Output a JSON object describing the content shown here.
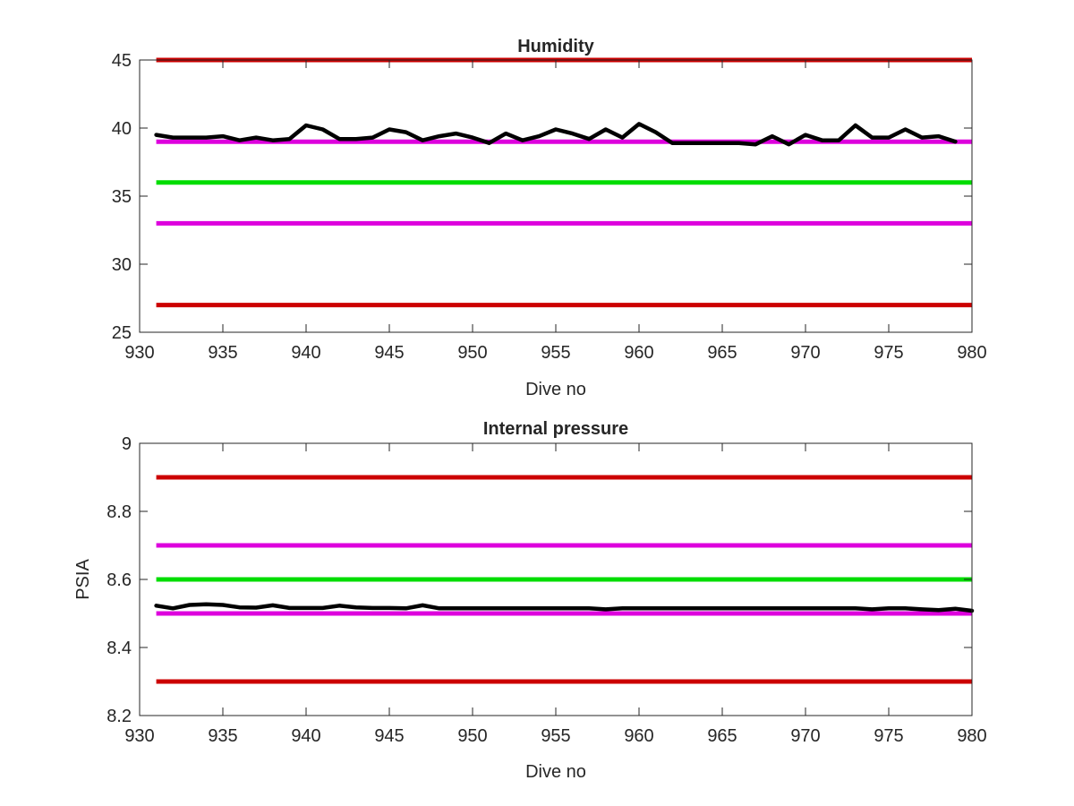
{
  "chart_data": [
    {
      "type": "line",
      "title": "Humidity",
      "xlabel": "Dive no",
      "ylabel": "",
      "xlim": [
        930,
        980
      ],
      "ylim": [
        25,
        45
      ],
      "xticks": [
        "930",
        "935",
        "940",
        "945",
        "950",
        "955",
        "960",
        "965",
        "970",
        "975",
        "980"
      ],
      "yticks": [
        "25",
        "30",
        "35",
        "40",
        "45"
      ],
      "grid": false,
      "reference_lines": [
        {
          "y": 45,
          "color": "#cc0000"
        },
        {
          "y": 39,
          "color": "#dd00dd"
        },
        {
          "y": 36,
          "color": "#00dd00"
        },
        {
          "y": 33,
          "color": "#dd00dd"
        },
        {
          "y": 27,
          "color": "#cc0000"
        }
      ],
      "series": [
        {
          "color": "#000000",
          "x": [
            931,
            932,
            933,
            934,
            935,
            936,
            937,
            938,
            939,
            940,
            941,
            942,
            943,
            944,
            945,
            946,
            947,
            948,
            949,
            950,
            951,
            952,
            953,
            954,
            955,
            956,
            957,
            958,
            959,
            960,
            961,
            962,
            963,
            964,
            965,
            966,
            967,
            968,
            969,
            970,
            971,
            972,
            973,
            974,
            975,
            976,
            977,
            978,
            979
          ],
          "y": [
            39.5,
            39.3,
            39.3,
            39.3,
            39.4,
            39.1,
            39.3,
            39.1,
            39.2,
            40.2,
            39.9,
            39.2,
            39.2,
            39.3,
            39.9,
            39.7,
            39.1,
            39.4,
            39.6,
            39.3,
            38.9,
            39.6,
            39.1,
            39.4,
            39.9,
            39.6,
            39.2,
            39.9,
            39.3,
            40.3,
            39.7,
            38.9,
            38.9,
            38.9,
            38.9,
            38.9,
            38.8,
            39.4,
            38.8,
            39.5,
            39.1,
            39.1,
            40.2,
            39.3,
            39.3,
            39.9,
            39.3,
            39.4,
            39.0
          ]
        }
      ]
    },
    {
      "type": "line",
      "title": "Internal pressure",
      "xlabel": "Dive no",
      "ylabel": "PSIA",
      "xlim": [
        930,
        980
      ],
      "ylim": [
        8.2,
        9.0
      ],
      "xticks": [
        "930",
        "935",
        "940",
        "945",
        "950",
        "955",
        "960",
        "965",
        "970",
        "975",
        "980"
      ],
      "yticks": [
        "8.2",
        "8.4",
        "8.6",
        "8.8",
        "9"
      ],
      "grid": false,
      "reference_lines": [
        {
          "y": 8.9,
          "color": "#cc0000"
        },
        {
          "y": 8.7,
          "color": "#dd00dd"
        },
        {
          "y": 8.6,
          "color": "#00dd00"
        },
        {
          "y": 8.5,
          "color": "#dd00dd"
        },
        {
          "y": 8.3,
          "color": "#cc0000"
        }
      ],
      "series": [
        {
          "color": "#000000",
          "x": [
            931,
            932,
            933,
            934,
            935,
            936,
            937,
            938,
            939,
            940,
            941,
            942,
            943,
            944,
            945,
            946,
            947,
            948,
            949,
            950,
            951,
            952,
            953,
            954,
            955,
            956,
            957,
            958,
            959,
            960,
            961,
            962,
            963,
            964,
            965,
            966,
            967,
            968,
            969,
            970,
            971,
            972,
            973,
            974,
            975,
            976,
            977,
            978,
            979,
            980
          ],
          "y": [
            8.523,
            8.515,
            8.525,
            8.527,
            8.525,
            8.518,
            8.517,
            8.524,
            8.516,
            8.516,
            8.516,
            8.523,
            8.518,
            8.516,
            8.516,
            8.515,
            8.524,
            8.515,
            8.515,
            8.515,
            8.515,
            8.515,
            8.515,
            8.515,
            8.515,
            8.515,
            8.515,
            8.512,
            8.515,
            8.515,
            8.515,
            8.515,
            8.515,
            8.515,
            8.515,
            8.515,
            8.515,
            8.515,
            8.515,
            8.515,
            8.515,
            8.515,
            8.515,
            8.512,
            8.515,
            8.515,
            8.512,
            8.51,
            8.514,
            8.508
          ]
        }
      ]
    }
  ]
}
